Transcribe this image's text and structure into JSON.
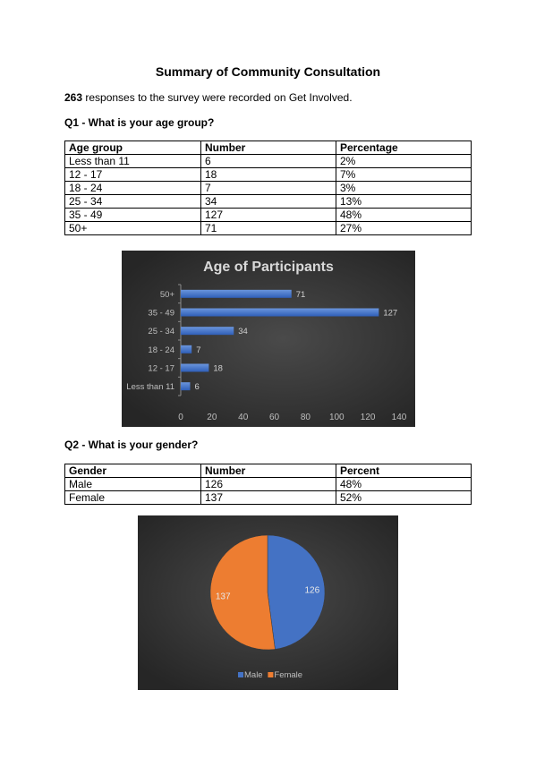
{
  "doc": {
    "title": "Summary of Community Consultation",
    "intro_count": "263",
    "intro_rest": " responses to the survey were recorded on Get Involved."
  },
  "q1": {
    "heading": "Q1 - What is your age group?",
    "headers": [
      "Age group",
      "Number",
      "Percentage"
    ],
    "rows": [
      [
        "Less than 11",
        "6",
        "2%"
      ],
      [
        "12 - 17",
        "18",
        "7%"
      ],
      [
        "18 - 24",
        "7",
        "3%"
      ],
      [
        "25 - 34",
        "34",
        "13%"
      ],
      [
        "35 - 49",
        "127",
        "48%"
      ],
      [
        "50+",
        "71",
        "27%"
      ]
    ]
  },
  "q2": {
    "heading": "Q2 - What is your gender?",
    "headers": [
      "Gender",
      "Number",
      "Percent"
    ],
    "rows": [
      [
        "Male",
        "126",
        "48%"
      ],
      [
        "Female",
        "137",
        "52%"
      ]
    ]
  },
  "chart_data": [
    {
      "type": "bar",
      "orientation": "horizontal",
      "title": "Age of Participants",
      "categories": [
        "Less than 11",
        "12 - 17",
        "18 - 24",
        "25 - 34",
        "35 - 49",
        "50+"
      ],
      "values": [
        6,
        18,
        7,
        34,
        127,
        71
      ],
      "xlim": [
        0,
        140
      ],
      "xticks": [
        0,
        20,
        40,
        60,
        80,
        100,
        120,
        140
      ],
      "data_labels": true,
      "bar_color": "#4472C4",
      "background": "#2b2b2b"
    },
    {
      "type": "pie",
      "labels": [
        "Male",
        "Female"
      ],
      "values": [
        126,
        137
      ],
      "colors": [
        "#4472C4",
        "#ED7D31"
      ],
      "legend": "bottom",
      "data_labels": true,
      "background": "#2b2b2b"
    }
  ]
}
